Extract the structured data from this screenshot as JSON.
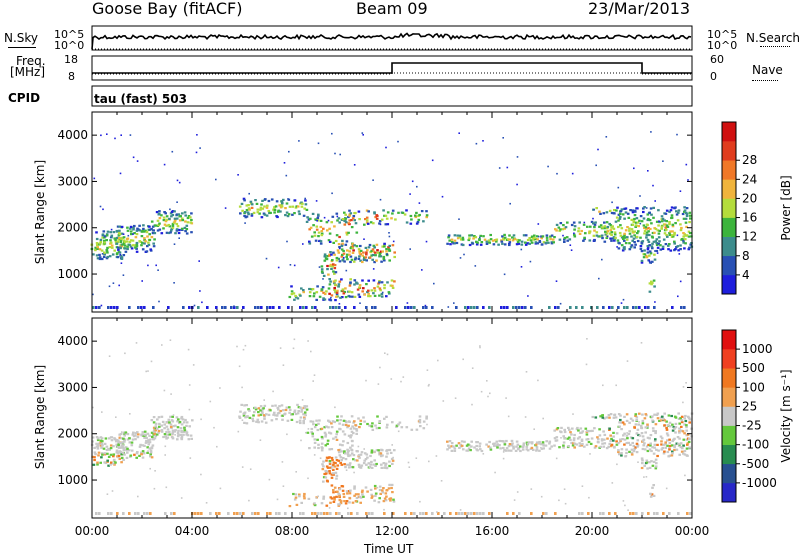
{
  "header": {
    "station": "Goose Bay (fitACF)",
    "beam": "Beam 09",
    "date": "23/Mar/2013"
  },
  "panel_labels": {
    "nsky": "N.Sky",
    "nsky_top": "10^5",
    "nsky_bottom": "10^0",
    "nsearch": "N.Search",
    "freq_a": "Freq.",
    "freq_b": "[MHz]",
    "freq_top": "18",
    "freq_bottom": "8",
    "nave_top": "60",
    "nave_bottom": "0",
    "nave": "Nave",
    "cpid": "CPID",
    "cpid_text": "tau (fast) 503"
  },
  "chart_data": [
    {
      "type": "heatmap",
      "quantity": "Power",
      "ylabel": "Slant Range [km]",
      "xlabel": "Time UT",
      "ylim": [
        180,
        4500
      ],
      "yticks": [
        1000,
        2000,
        3000,
        4000
      ],
      "xticks": [
        "00:00",
        "04:00",
        "08:00",
        "12:00",
        "16:00",
        "20:00",
        "00:00"
      ],
      "colorbar": {
        "label": "Power [dB]",
        "ticks": [
          "4",
          "8",
          "12",
          "16",
          "20",
          "24",
          "28"
        ],
        "colors": [
          "#1e1edc",
          "#2850b4",
          "#3c8c8c",
          "#3cb43c",
          "#b4dc3c",
          "#f0b43c",
          "#f07828",
          "#e03c1e",
          "#d01010"
        ]
      }
    },
    {
      "type": "heatmap",
      "quantity": "Velocity",
      "ylabel": "Slant Range [km]",
      "xlabel": "Time UT",
      "ylim": [
        180,
        4500
      ],
      "yticks": [
        1000,
        2000,
        3000,
        4000
      ],
      "xticks": [
        "00:00",
        "04:00",
        "08:00",
        "12:00",
        "16:00",
        "20:00",
        "00:00"
      ],
      "colorbar": {
        "label": "Velocity [m s⁻¹]",
        "ticks": [
          "1000",
          "500",
          "100",
          "25",
          "-25",
          "-100",
          "-500",
          "-1000"
        ],
        "colors": [
          "#2828c8",
          "#285090",
          "#288c50",
          "#64c83c",
          "#c8c8c8",
          "#f0a050",
          "#f07820",
          "#f04020",
          "#e01010"
        ]
      }
    }
  ]
}
